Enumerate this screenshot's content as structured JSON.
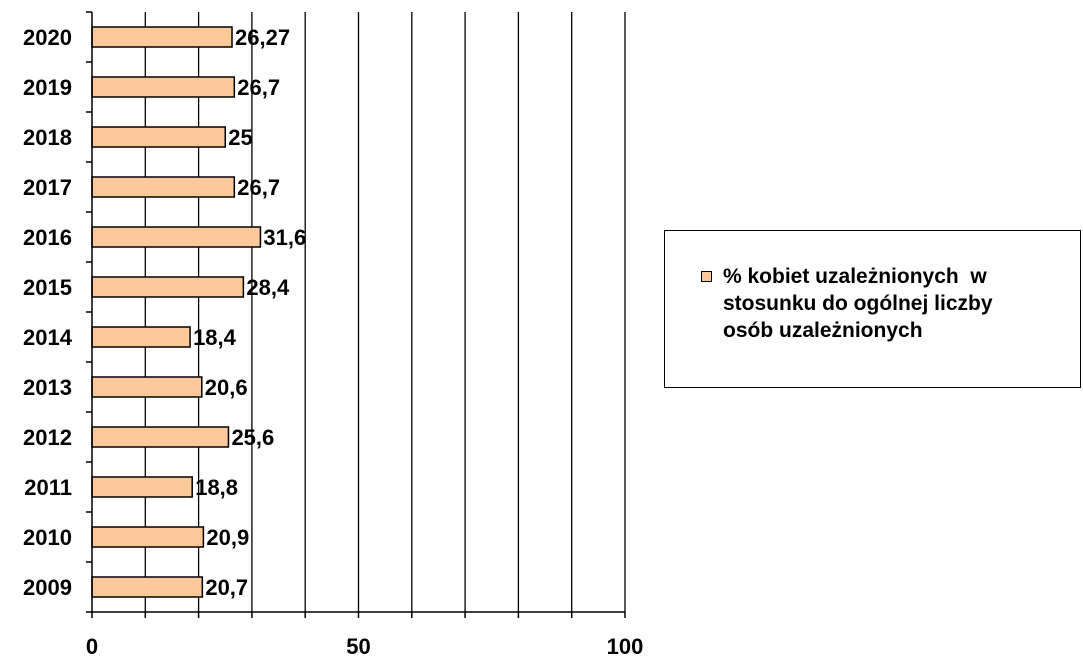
{
  "chart_data": {
    "type": "bar",
    "orientation": "horizontal",
    "categories": [
      "2009",
      "2010",
      "2011",
      "2012",
      "2013",
      "2014",
      "2015",
      "2016",
      "2017",
      "2018",
      "2019",
      "2020"
    ],
    "series": [
      {
        "name": "% kobiet uzależnionych  w stosunku do ogólnej liczby osób uzależnionych",
        "values": [
          20.7,
          20.9,
          18.8,
          25.6,
          20.6,
          18.4,
          28.4,
          31.6,
          26.7,
          25,
          26.7,
          26.27
        ],
        "labels": [
          "20,7",
          "20,9",
          "18,8",
          "25,6",
          "20,6",
          "18,4",
          "28,4",
          "31,6",
          "26,7",
          "25",
          "26,7",
          "26,27"
        ],
        "color": "#fcc99b"
      }
    ],
    "xlim": [
      0,
      100
    ],
    "x_ticks": [
      "0",
      "50",
      "100"
    ],
    "gridlines": "vertical, every 10",
    "legend_position": "right",
    "legend_lines": [
      "% kobiet uzależnionych  w",
      "stosunku do ogólnej liczby",
      "osób uzależnionych"
    ]
  }
}
